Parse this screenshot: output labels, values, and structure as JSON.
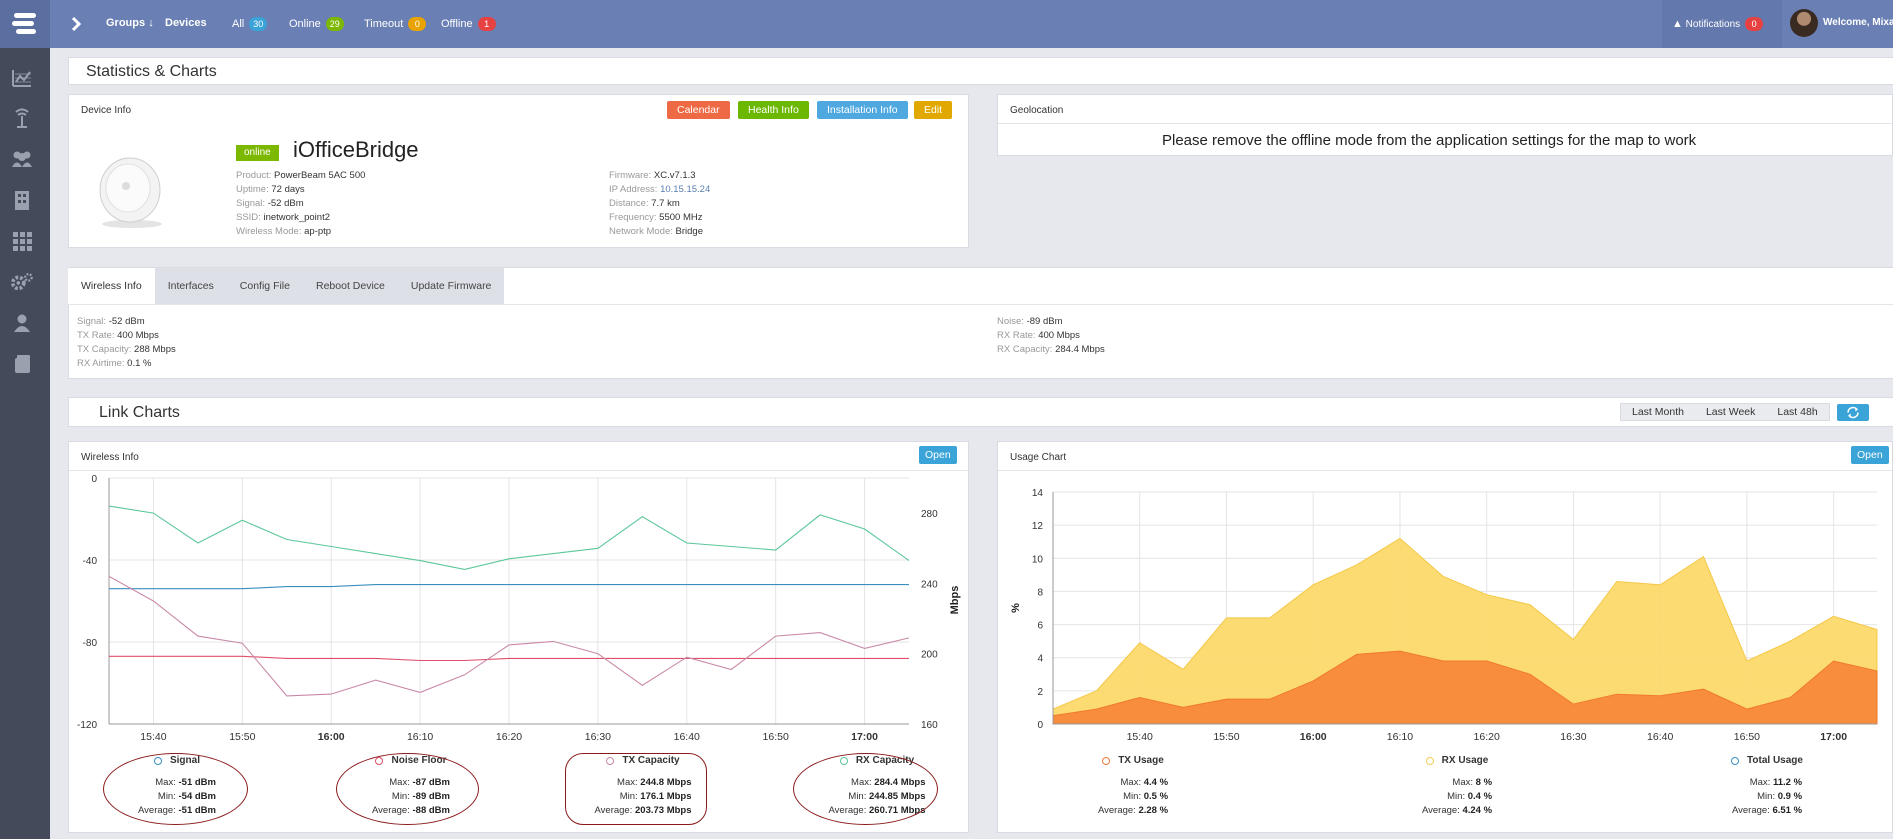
{
  "topbar": {
    "groups_label": "Groups",
    "devices_label": "Devices",
    "filters": [
      {
        "label": "All",
        "count": "30"
      },
      {
        "label": "Online",
        "count": "29"
      },
      {
        "label": "Timeout",
        "count": "0"
      },
      {
        "label": "Offline",
        "count": "1"
      }
    ],
    "notifications_label": "Notifications",
    "notifications_count": "0",
    "welcome_label": "Welcome, Mixa"
  },
  "page_title": "Statistics & Charts",
  "device_info": {
    "panel_title": "Device Info",
    "buttons": {
      "calendar": "Calendar",
      "health": "Health Info",
      "installation": "Installation Info",
      "edit": "Edit"
    },
    "status": "online",
    "name": "iOfficeBridge",
    "left_fields": [
      {
        "label": "Product:",
        "value": "PowerBeam 5AC 500"
      },
      {
        "label": "Uptime:",
        "value": "72 days"
      },
      {
        "label": "Signal:",
        "value": "-52 dBm"
      },
      {
        "label": "SSID:",
        "value": "inetwork_point2"
      },
      {
        "label": "Wireless Mode:",
        "value": "ap-ptp"
      }
    ],
    "right_fields": [
      {
        "label": "Firmware:",
        "value": "XC.v7.1.3"
      },
      {
        "label": "IP Address:",
        "value": "10.15.15.24"
      },
      {
        "label": "Distance:",
        "value": "7.7 km"
      },
      {
        "label": "Frequency:",
        "value": "5500 MHz"
      },
      {
        "label": "Network Mode:",
        "value": "Bridge"
      }
    ]
  },
  "geolocation": {
    "panel_title": "Geolocation",
    "message": "Please remove the offline mode from the application settings for the map to work"
  },
  "tabs": [
    "Wireless Info",
    "Interfaces",
    "Config File",
    "Reboot Device",
    "Update Firmware"
  ],
  "wireless_info": {
    "left": [
      {
        "label": "Signal:",
        "value": "-52 dBm"
      },
      {
        "label": "TX Rate:",
        "value": "400 Mbps"
      },
      {
        "label": "TX Capacity:",
        "value": "288 Mbps"
      },
      {
        "label": "RX Airtime:",
        "value": "0.1 %"
      }
    ],
    "right": [
      {
        "label": "Noise:",
        "value": "-89 dBm"
      },
      {
        "label": "RX Rate:",
        "value": "400 Mbps"
      },
      {
        "label": "RX Capacity:",
        "value": "284.4 Mbps"
      }
    ]
  },
  "link_charts": {
    "title": "Link Charts",
    "ranges": [
      "Last Month",
      "Last Week",
      "Last 48h"
    ]
  },
  "wireless_chart": {
    "panel_title": "Wireless Info",
    "open_label": "Open",
    "legend": [
      {
        "name": "Signal",
        "color": "#3a8fbf",
        "max": "-51 dBm",
        "min": "-54 dBm",
        "avg": "-51 dBm"
      },
      {
        "name": "Noise Floor",
        "color": "#e0506a",
        "max": "-87 dBm",
        "min": "-89 dBm",
        "avg": "-88 dBm"
      },
      {
        "name": "TX Capacity",
        "color": "#c98aa8",
        "max": "244.8 Mbps",
        "min": "176.1 Mbps",
        "avg": "203.73 Mbps"
      },
      {
        "name": "RX Capacity",
        "color": "#5cc79a",
        "max": "284.4 Mbps",
        "min": "244.85 Mbps",
        "avg": "260.71 Mbps"
      }
    ],
    "labels": {
      "max": "Max:",
      "min": "Min:",
      "avg": "Average:"
    }
  },
  "usage_chart": {
    "panel_title": "Usage Chart",
    "open_label": "Open",
    "legend": [
      {
        "name": "TX Usage",
        "color": "#f07a3a",
        "max": "4.4 %",
        "min": "0.5 %",
        "avg": "2.28 %"
      },
      {
        "name": "RX Usage",
        "color": "#f0cf50",
        "max": "8 %",
        "min": "0.4 %",
        "avg": "4.24 %"
      },
      {
        "name": "Total Usage",
        "color": "#3a8fbf",
        "max": "11.2 %",
        "min": "0.9 %",
        "avg": "6.51 %"
      }
    ],
    "labels": {
      "max": "Max:",
      "min": "Min:",
      "avg": "Average:"
    }
  },
  "chart_data": [
    {
      "type": "line",
      "x": [
        "15:35",
        "15:40",
        "15:45",
        "15:50",
        "15:55",
        "16:00",
        "16:05",
        "16:10",
        "16:15",
        "16:20",
        "16:25",
        "16:30",
        "16:35",
        "16:40",
        "16:45",
        "16:50",
        "16:55",
        "17:00",
        "17:05"
      ],
      "xticks": [
        "15:40",
        "15:50",
        "16:00",
        "16:10",
        "16:20",
        "16:30",
        "16:40",
        "16:50",
        "17:00"
      ],
      "xticks_bold": [
        "16:00",
        "17:00"
      ],
      "ylim": [
        -120,
        0
      ],
      "yticks": [
        0,
        -40,
        -80,
        -120
      ],
      "y2lim": [
        160,
        300
      ],
      "y2ticks": [
        280,
        240,
        200,
        160
      ],
      "y2label": "Mbps",
      "series": [
        {
          "name": "Signal",
          "axis": "left",
          "values": [
            -54,
            -54,
            -54,
            -54,
            -53,
            -53,
            -52,
            -52,
            -52,
            -52,
            -52,
            -52,
            -52,
            -52,
            -52,
            -52,
            -52,
            -52,
            -52
          ]
        },
        {
          "name": "Noise Floor",
          "axis": "left",
          "values": [
            -87,
            -87,
            -87,
            -87,
            -88,
            -88,
            -88,
            -89,
            -89,
            -88,
            -88,
            -88,
            -88,
            -88,
            -88,
            -88,
            -88,
            -88,
            -88
          ]
        },
        {
          "name": "TX Capacity",
          "axis": "right",
          "values": [
            244,
            230,
            210,
            206,
            176,
            177,
            185,
            178,
            188,
            205,
            207,
            200,
            182,
            198,
            191,
            210,
            212,
            203,
            209
          ]
        },
        {
          "name": "RX Capacity",
          "axis": "right",
          "values": [
            284,
            280,
            263,
            276,
            265,
            261,
            257,
            253,
            248,
            254,
            257,
            260,
            278,
            263,
            261,
            259,
            279,
            271,
            253
          ]
        }
      ]
    },
    {
      "type": "area",
      "x": [
        "15:30",
        "15:35",
        "15:40",
        "15:45",
        "15:50",
        "15:55",
        "16:00",
        "16:05",
        "16:10",
        "16:15",
        "16:20",
        "16:25",
        "16:30",
        "16:35",
        "16:40",
        "16:45",
        "16:50",
        "16:55",
        "17:00",
        "17:05"
      ],
      "xticks": [
        "15:40",
        "15:50",
        "16:00",
        "16:10",
        "16:20",
        "16:30",
        "16:40",
        "16:50",
        "17:00"
      ],
      "xticks_bold": [
        "16:00",
        "17:00"
      ],
      "ylabel": "%",
      "ylim": [
        0,
        14
      ],
      "yticks": [
        0,
        2,
        4,
        6,
        8,
        10,
        12,
        14
      ],
      "series": [
        {
          "name": "TX Usage",
          "values": [
            0.5,
            0.9,
            1.6,
            1.0,
            1.5,
            1.5,
            2.6,
            4.2,
            4.4,
            3.8,
            3.8,
            3.0,
            1.2,
            1.8,
            1.7,
            2.1,
            0.9,
            1.6,
            3.8,
            3.2
          ]
        },
        {
          "name": "Total Usage",
          "values": [
            0.9,
            2.0,
            4.9,
            3.3,
            6.4,
            6.4,
            8.4,
            9.6,
            11.2,
            8.9,
            7.8,
            7.2,
            5.1,
            8.6,
            8.4,
            10.1,
            3.8,
            5.0,
            6.5,
            5.7
          ]
        }
      ]
    }
  ]
}
